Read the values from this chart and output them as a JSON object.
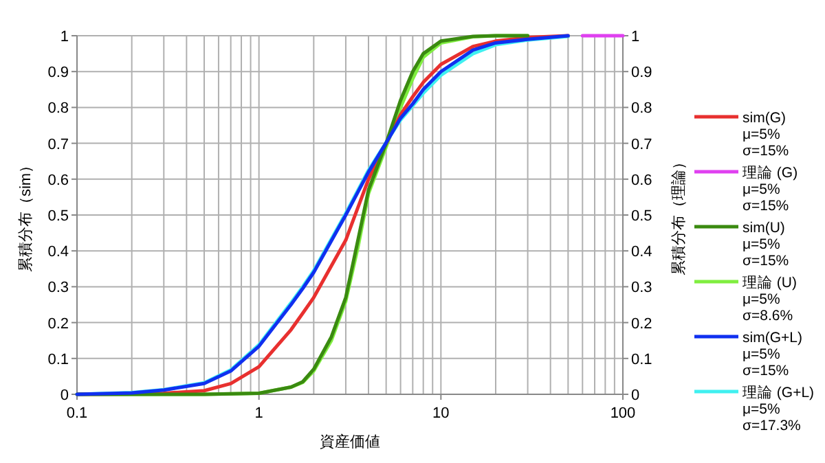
{
  "chart_data": {
    "type": "line",
    "xlabel": "資産価値",
    "ylabel": "累積分布（sim）",
    "y2label": "累積分布（理論）",
    "log": "x",
    "grid": true,
    "legend": "right",
    "line_style": "solid",
    "marker": "none",
    "xlim": [
      0.1,
      100
    ],
    "xticks": [
      0.1,
      1,
      10,
      100
    ],
    "ylim": [
      0,
      1
    ],
    "yticks": [
      0,
      0.1,
      0.2,
      0.3,
      0.4,
      0.5,
      0.6,
      0.7,
      0.8,
      0.9,
      1
    ],
    "y2lim": [
      0,
      1
    ],
    "y2ticks": [
      0,
      0.1,
      0.2,
      0.3,
      0.4,
      0.5,
      0.6,
      0.7,
      0.8,
      0.9,
      1
    ],
    "series": [
      {
        "name": "sim(G)\nμ=5%\nσ=15%",
        "color": "#e8302f",
        "x": [
          0.1,
          0.2,
          0.3,
          0.5,
          0.7,
          1,
          1.5,
          1.74,
          2,
          3,
          4,
          5.2,
          6,
          7,
          8,
          10,
          15,
          20,
          30,
          50
        ],
        "values": [
          0,
          0.001,
          0.003,
          0.01,
          0.03,
          0.077,
          0.18,
          0.226,
          0.27,
          0.43,
          0.6,
          0.716,
          0.78,
          0.83,
          0.87,
          0.92,
          0.97,
          0.985,
          0.995,
          1
        ]
      },
      {
        "name": "理論 (G)\nμ=5%\nσ=15%",
        "color": "#e040f0",
        "axis": "y2",
        "x": [
          60,
          100
        ],
        "values": [
          1,
          1
        ]
      },
      {
        "name": "sim(U)\nμ=5%\nσ=15%",
        "color": "#3a8a10",
        "x": [
          0.1,
          0.5,
          1,
          1.5,
          1.74,
          2,
          2.5,
          3,
          3.5,
          4,
          5,
          6,
          7,
          8,
          10,
          15,
          20,
          30
        ],
        "values": [
          0,
          0,
          0.003,
          0.02,
          0.035,
          0.07,
          0.16,
          0.27,
          0.43,
          0.57,
          0.7,
          0.82,
          0.9,
          0.95,
          0.985,
          0.998,
          1,
          1
        ]
      },
      {
        "name": "理論 (U)\nμ=5%\nσ=8.6%",
        "color": "#80ee40",
        "axis": "y2",
        "x": [
          0.1,
          0.5,
          1,
          1.5,
          1.74,
          2,
          2.5,
          3,
          3.5,
          4,
          5,
          6,
          7,
          8,
          10,
          15,
          20,
          30
        ],
        "values": [
          0,
          0,
          0.003,
          0.02,
          0.033,
          0.065,
          0.15,
          0.26,
          0.41,
          0.56,
          0.69,
          0.8,
          0.88,
          0.94,
          0.98,
          0.997,
          1,
          1
        ]
      },
      {
        "name": "sim(G+L)\nμ=5%\nσ=15%",
        "color": "#1030f0",
        "x": [
          0.1,
          0.2,
          0.3,
          0.5,
          0.7,
          1,
          1.5,
          1.74,
          2,
          3,
          4,
          5.2,
          6,
          7,
          8,
          10,
          15,
          20,
          30,
          50
        ],
        "values": [
          0,
          0.004,
          0.012,
          0.03,
          0.065,
          0.134,
          0.25,
          0.295,
          0.34,
          0.5,
          0.62,
          0.716,
          0.77,
          0.81,
          0.85,
          0.9,
          0.96,
          0.98,
          0.99,
          1
        ]
      },
      {
        "name": "理論 (G+L)\nμ=5%\nσ=17.3%",
        "color": "#40f0f0",
        "axis": "y2",
        "x": [
          0.1,
          0.2,
          0.3,
          0.5,
          0.7,
          1,
          1.5,
          1.74,
          2,
          3,
          4,
          5.2,
          6,
          7,
          8,
          10,
          15,
          20,
          30,
          50
        ],
        "values": [
          0,
          0.005,
          0.013,
          0.032,
          0.068,
          0.138,
          0.255,
          0.3,
          0.345,
          0.505,
          0.625,
          0.716,
          0.765,
          0.805,
          0.84,
          0.89,
          0.95,
          0.975,
          0.988,
          0.998
        ]
      }
    ]
  }
}
